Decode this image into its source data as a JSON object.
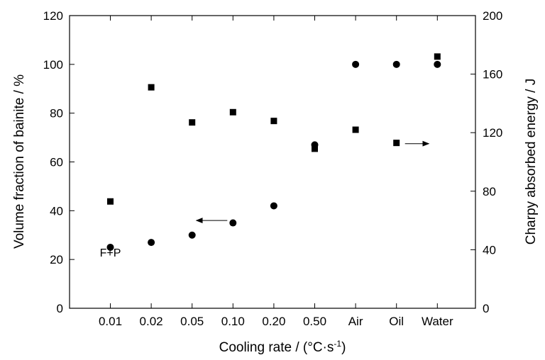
{
  "chart_data": {
    "type": "scatter",
    "categories": [
      "0.01",
      "0.02",
      "0.05",
      "0.10",
      "0.20",
      "0.50",
      "Air",
      "Oil",
      "Water"
    ],
    "xlabel_main": "Cooling rate / (",
    "xlabel_unit": "°C·s",
    "xlabel_exp": "-1",
    "xlabel_end": ")",
    "ylabel_left": "Volume fraction of bainite / %",
    "ylabel_right": "Charpy absorbed energy / J",
    "ylim_left": [
      0,
      120
    ],
    "yticks_left": [
      0,
      20,
      40,
      60,
      80,
      100,
      120
    ],
    "ylim_right": [
      0,
      200
    ],
    "yticks_right": [
      0,
      40,
      80,
      120,
      160,
      200
    ],
    "grid": false,
    "series": [
      {
        "axis": "left",
        "marker": "circle",
        "values": [
          25,
          27,
          30,
          35,
          42,
          67,
          100,
          100,
          100
        ]
      },
      {
        "axis": "right",
        "marker": "square",
        "values": [
          73,
          151,
          127,
          134,
          128,
          109,
          122,
          113,
          172
        ]
      }
    ],
    "annotations": [
      {
        "text": "F+P",
        "category": "0.01",
        "y_left": 23
      }
    ],
    "arrows": [
      {
        "direction": "left",
        "category_from": "0.10",
        "category_to": "0.05",
        "y_left": 36
      },
      {
        "direction": "right",
        "category_from": "Oil",
        "category_to": "Water",
        "y_left": 67.5
      }
    ]
  }
}
